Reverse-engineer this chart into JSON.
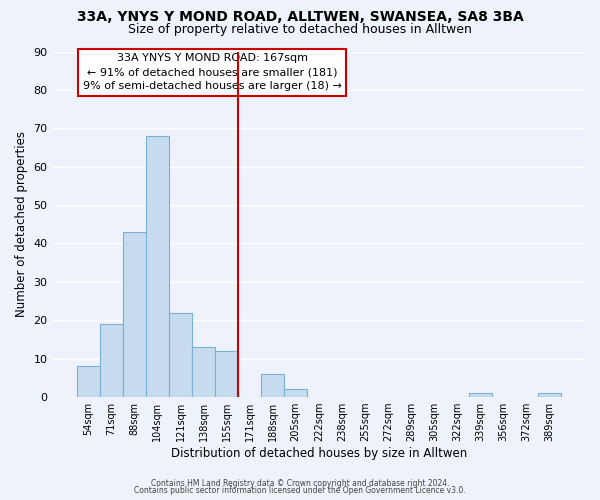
{
  "title_line1": "33A, YNYS Y MOND ROAD, ALLTWEN, SWANSEA, SA8 3BA",
  "title_line2": "Size of property relative to detached houses in Alltwen",
  "xlabel": "Distribution of detached houses by size in Alltwen",
  "ylabel": "Number of detached properties",
  "bar_labels": [
    "54sqm",
    "71sqm",
    "88sqm",
    "104sqm",
    "121sqm",
    "138sqm",
    "155sqm",
    "171sqm",
    "188sqm",
    "205sqm",
    "222sqm",
    "238sqm",
    "255sqm",
    "272sqm",
    "289sqm",
    "305sqm",
    "322sqm",
    "339sqm",
    "356sqm",
    "372sqm",
    "389sqm"
  ],
  "bar_values": [
    8,
    19,
    43,
    68,
    22,
    13,
    12,
    0,
    6,
    2,
    0,
    0,
    0,
    0,
    0,
    0,
    0,
    1,
    0,
    0,
    1
  ],
  "bar_color": "#c6dcee",
  "bar_edge_color": "#7bafd4",
  "marker_line_index": 7,
  "marker_color": "#cc0000",
  "ylim": [
    0,
    90
  ],
  "yticks": [
    0,
    10,
    20,
    30,
    40,
    50,
    60,
    70,
    80,
    90
  ],
  "annotation_title": "33A YNYS Y MOND ROAD: 167sqm",
  "annotation_line1": "← 91% of detached houses are smaller (181)",
  "annotation_line2": "9% of semi-detached houses are larger (18) →",
  "footer_line1": "Contains HM Land Registry data © Crown copyright and database right 2024.",
  "footer_line2": "Contains public sector information licensed under the Open Government Licence v3.0.",
  "background_color": "#eef2fb",
  "plot_bg_color": "#eef2fb",
  "grid_color": "#ffffff"
}
